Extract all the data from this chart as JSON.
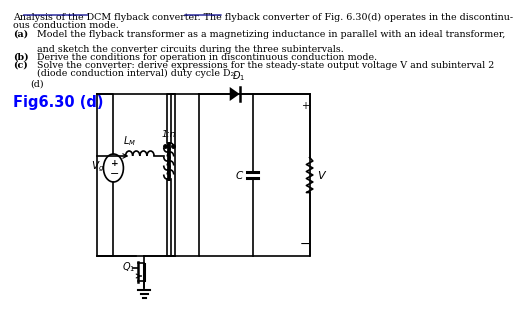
{
  "title_line1": "Analysis of the DCM flyback converter. The flyback converter of Fig. 6.30(d) operates in the discontinu-",
  "title_line2": "ous conduction mode.",
  "item_a_label": "(a)",
  "item_a_text": "Model the flyback transformer as a magnetizing inductance in parallel with an ideal transformer,",
  "item_a2": "and sketch the converter circuits during the three subintervals.",
  "item_b_label": "(b)",
  "item_b_text": "Derive the conditions for operation in discontinuous conduction mode.",
  "item_c_label": "(c)",
  "item_c_text": "Solve the converter: derive expressions for the steady-state output voltage V and subinterval 2",
  "item_c2": "(diode conduction interval) duty cycle D₂.",
  "item_d": "(d)",
  "fig_label": "Fig6.30 (d)",
  "fig_label_color": "#0000FF",
  "background_color": "#FFFFFF",
  "text_color": "#000000",
  "bold_labels": [
    "(b)",
    "(c)"
  ],
  "font_size_main": 6.8,
  "font_size_fig": 10.5,
  "underline_color": "#00008B"
}
